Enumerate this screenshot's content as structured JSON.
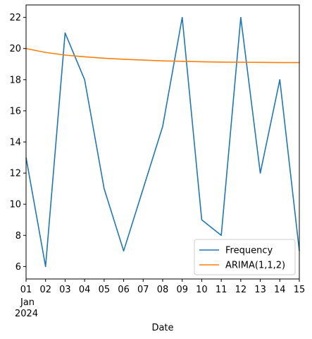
{
  "chart_data": {
    "type": "line",
    "title": "",
    "xlabel": "Date",
    "ylabel": "",
    "x": [
      "2024-01-01",
      "2024-01-02",
      "2024-01-03",
      "2024-01-04",
      "2024-01-05",
      "2024-01-06",
      "2024-01-07",
      "2024-01-08",
      "2024-01-09",
      "2024-01-10",
      "2024-01-11",
      "2024-01-12",
      "2024-01-13",
      "2024-01-14",
      "2024-01-15"
    ],
    "x_tick_labels": [
      "01",
      "02",
      "03",
      "04",
      "05",
      "06",
      "07",
      "08",
      "09",
      "10",
      "11",
      "12",
      "13",
      "14",
      "15"
    ],
    "x_secondary_labels": [
      "Jan",
      "2024"
    ],
    "xlim": [
      "2024-01-01",
      "2024-01-15"
    ],
    "ylim": [
      5.2,
      22.8
    ],
    "y_ticks": [
      6,
      8,
      10,
      12,
      14,
      16,
      18,
      20,
      22
    ],
    "grid": false,
    "legend_position": "lower-right",
    "series": [
      {
        "name": "Frequency",
        "color": "#1f77b4",
        "values": [
          13,
          6,
          21,
          18,
          11,
          7,
          11,
          15,
          22,
          9,
          8,
          22,
          12,
          18,
          7
        ]
      },
      {
        "name": "ARIMA(1,1,2)",
        "color": "#ff7f0e",
        "values": [
          20.0,
          19.75,
          19.58,
          19.47,
          19.38,
          19.31,
          19.26,
          19.21,
          19.18,
          19.15,
          19.13,
          19.12,
          19.11,
          19.1,
          19.1
        ]
      }
    ]
  }
}
